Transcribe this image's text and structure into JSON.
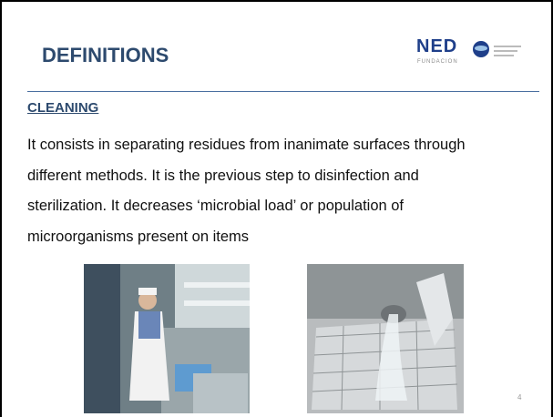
{
  "header": {
    "title": "DEFINITIONS",
    "logo": {
      "name": "NED",
      "subtitle": "FUNDACION"
    }
  },
  "section": {
    "heading": "CLEANING",
    "lines": [
      "It consists in separating  residues from inanimate surfaces through",
      "different methods. It is the previous step to disinfection and",
      "sterilization. It decreases  ‘microbial load’ or population of",
      "microorganisms  present on items"
    ]
  },
  "footer": {
    "page_number": "4"
  }
}
